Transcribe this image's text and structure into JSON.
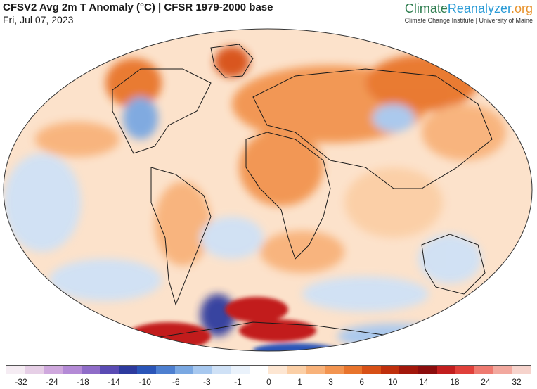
{
  "header": {
    "title": "CFSV2 Avg 2m T Anomaly (°C) | CFSR 1979-2000 base",
    "date": "Fri, Jul 07, 2023"
  },
  "brand": {
    "name_part1": "Climate",
    "name_part2": "Reanalyzer",
    "name_part3": ".org",
    "subtitle": "Climate Change Institute | University of Maine"
  },
  "colorbar": {
    "colors": [
      "#f5ecf3",
      "#e6cfe6",
      "#cfa8dd",
      "#b48ad6",
      "#8f6cc8",
      "#5a4bb4",
      "#2d3a9e",
      "#2a55b8",
      "#4d7fd0",
      "#7aa8e2",
      "#a7c8ef",
      "#cfe1f6",
      "#eaf2fb",
      "#ffffff",
      "#fde6d2",
      "#fbcfa6",
      "#f8b27a",
      "#f29450",
      "#e8742c",
      "#d75016",
      "#bf2f0c",
      "#a2170b",
      "#8b0d0d",
      "#c21e1e",
      "#e0403a",
      "#ee7a70",
      "#f2a89e",
      "#f6d3cc"
    ],
    "tick_labels": [
      "-32",
      "-24",
      "-18",
      "-14",
      "-10",
      "-6",
      "-3",
      "-1",
      "0",
      "1",
      "3",
      "6",
      "10",
      "14",
      "18",
      "24",
      "32"
    ]
  }
}
